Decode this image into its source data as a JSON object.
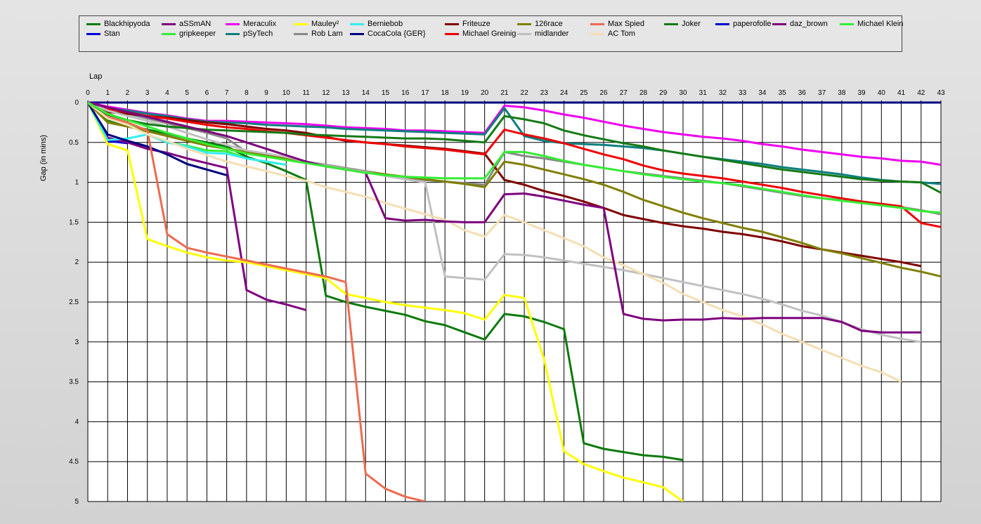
{
  "chart_data": {
    "type": "line",
    "xlabel": "Lap",
    "ylabel": "Gap (in mins)",
    "xlim": [
      0,
      43
    ],
    "ylim": [
      0,
      5
    ],
    "y_inverted": true,
    "grid": true,
    "legend_position": "top",
    "x_ticks": [
      0,
      1,
      2,
      3,
      4,
      5,
      6,
      7,
      8,
      9,
      10,
      11,
      12,
      13,
      14,
      15,
      16,
      17,
      18,
      19,
      20,
      21,
      22,
      23,
      24,
      25,
      26,
      27,
      28,
      29,
      30,
      31,
      32,
      33,
      34,
      35,
      36,
      37,
      38,
      39,
      40,
      41,
      42,
      43
    ],
    "y_ticks": [
      "0",
      "0.5",
      "1",
      "1.5",
      "2",
      "2.5",
      "3",
      "3.5",
      "4",
      "4.5",
      "5"
    ],
    "series": [
      {
        "name": "Blackhipyoda",
        "color": "#0b7a0b",
        "values": [
          0,
          0.22,
          0.28,
          0.34,
          0.39,
          0.45,
          0.5,
          0.55,
          0.68,
          0.76,
          0.86,
          0.97,
          2.42,
          2.5,
          2.56,
          2.61,
          2.66,
          2.74,
          2.79,
          2.88,
          2.97,
          2.65,
          2.68,
          2.75,
          2.84,
          4.27,
          4.34,
          4.38,
          4.42,
          4.44,
          4.48
        ]
      },
      {
        "name": "Stan",
        "color": "#0000dd",
        "values": [
          0,
          0.48,
          0.51
        ]
      },
      {
        "name": "aSSmAN",
        "color": "#800080",
        "values": [
          0,
          0.44,
          0.5,
          0.58,
          0.63,
          0.7,
          0.76,
          0.82,
          2.35,
          2.47,
          2.53,
          2.6
        ]
      },
      {
        "name": "gripkeeper",
        "color": "#33ee33",
        "values": [
          0,
          0.2,
          0.26,
          0.4,
          0.5,
          0.54,
          0.6,
          0.61,
          0.7,
          0.74,
          0.78
        ]
      },
      {
        "name": "Meraculix",
        "color": "#ee00ee",
        "values": [
          0,
          0.05,
          0.09,
          0.13,
          0.16,
          0.2,
          0.23,
          0.23,
          0.24,
          0.25,
          0.26,
          0.27,
          0.29,
          0.31,
          0.32,
          0.33,
          0.35,
          0.35,
          0.36,
          0.37,
          0.38,
          0.04,
          0.06,
          0.1,
          0.15,
          0.19,
          0.24,
          0.29,
          0.33,
          0.37,
          0.4,
          0.43,
          0.45,
          0.48,
          0.52,
          0.55,
          0.59,
          0.62,
          0.65,
          0.68,
          0.7,
          0.73,
          0.74,
          0.78
        ]
      },
      {
        "name": "pSyTech",
        "color": "#0e7e7e",
        "values": [
          0,
          0.07,
          0.1,
          0.14,
          0.17,
          0.21,
          0.24,
          0.25,
          0.26,
          0.28,
          0.29,
          0.3,
          0.31,
          0.33,
          0.34,
          0.35,
          0.36,
          0.37,
          0.38,
          0.39,
          0.4,
          0.07,
          0.42,
          0.48,
          0.51,
          0.52,
          0.53,
          0.55,
          0.57,
          0.6,
          0.64,
          0.68,
          0.71,
          0.74,
          0.77,
          0.81,
          0.84,
          0.87,
          0.9,
          0.94,
          0.97,
          0.99,
          1.0,
          1.02
        ]
      },
      {
        "name": "Mauley²",
        "color": "#ffff00",
        "values": [
          0,
          0.52,
          0.6,
          1.71,
          1.8,
          1.88,
          1.94,
          1.98,
          2.0,
          2.05,
          2.1,
          2.15,
          2.2,
          2.4,
          2.45,
          2.5,
          2.54,
          2.57,
          2.6,
          2.64,
          2.72,
          2.41,
          2.45,
          3.22,
          4.37,
          4.53,
          4.62,
          4.7,
          4.76,
          4.82,
          5.0
        ]
      },
      {
        "name": "Rob Lam",
        "color": "#888888",
        "values": [
          0,
          0.1,
          0.14,
          0.2,
          0.26,
          0.32,
          0.38,
          0.45,
          0.62,
          0.66,
          0.7,
          0.74,
          0.78,
          0.82,
          0.86,
          0.9,
          0.94,
          0.97,
          0.99,
          1.01,
          1.03,
          0.62,
          0.67,
          0.7,
          0.74,
          0.78,
          0.82,
          0.86,
          0.89,
          0.92,
          0.95,
          0.98,
          1.01,
          1.05,
          1.09,
          1.13,
          1.17,
          1.2,
          1.22,
          1.25,
          1.28,
          1.31,
          1.35,
          1.4
        ]
      },
      {
        "name": "Berniebob",
        "color": "#33eeee",
        "values": [
          0,
          0.47,
          0.45,
          0.4,
          0.5,
          0.55,
          0.63,
          0.64,
          0.7,
          0.74,
          0.78
        ]
      },
      {
        "name": "CocaCola {GER}",
        "color": "#000080",
        "values": [
          0,
          0.4,
          0.48,
          0.55,
          0.65,
          0.77,
          0.84,
          0.91
        ]
      },
      {
        "name": "Friteuze",
        "color": "#800000",
        "values": [
          0,
          0.12,
          0.14,
          0.17,
          0.19,
          0.22,
          0.25,
          0.27,
          0.3,
          0.33,
          0.35,
          0.38,
          0.43,
          0.48,
          0.5,
          0.52,
          0.54,
          0.56,
          0.58,
          0.61,
          0.64,
          0.97,
          1.03,
          1.11,
          1.17,
          1.24,
          1.32,
          1.41,
          1.46,
          1.51,
          1.55,
          1.58,
          1.62,
          1.65,
          1.69,
          1.74,
          1.8,
          1.84,
          1.88,
          1.92,
          1.96,
          2.0,
          2.05
        ]
      },
      {
        "name": "Michael Greinig",
        "color": "#ee0000",
        "values": [
          0,
          0.08,
          0.12,
          0.17,
          0.2,
          0.24,
          0.28,
          0.31,
          0.33,
          0.36,
          0.38,
          0.41,
          0.44,
          0.47,
          0.5,
          0.52,
          0.55,
          0.57,
          0.59,
          0.62,
          0.65,
          0.34,
          0.4,
          0.45,
          0.51,
          0.58,
          0.65,
          0.71,
          0.79,
          0.85,
          0.89,
          0.92,
          0.95,
          0.99,
          1.03,
          1.07,
          1.12,
          1.16,
          1.2,
          1.24,
          1.27,
          1.3,
          1.51,
          1.56
        ]
      },
      {
        "name": "126race",
        "color": "#807f00",
        "values": [
          0,
          0.25,
          0.3,
          0.36,
          0.42,
          0.48,
          0.54,
          0.58,
          0.62,
          0.66,
          0.7,
          0.75,
          0.79,
          0.83,
          0.87,
          0.9,
          0.93,
          0.96,
          0.99,
          1.02,
          1.06,
          0.74,
          0.78,
          0.84,
          0.9,
          0.96,
          1.03,
          1.12,
          1.22,
          1.3,
          1.38,
          1.45,
          1.51,
          1.57,
          1.62,
          1.69,
          1.76,
          1.84,
          1.89,
          1.95,
          2.01,
          2.07,
          2.12,
          2.18
        ]
      },
      {
        "name": "midlander",
        "color": "#c0c0c0",
        "values": [
          0,
          0.1,
          0.17,
          0.23,
          0.3,
          0.38,
          0.46,
          0.53,
          0.6,
          0.64,
          0.68,
          0.74,
          0.79,
          0.83,
          0.87,
          0.92,
          0.96,
          1.0,
          2.18,
          2.2,
          2.22,
          1.9,
          1.91,
          1.94,
          1.98,
          2.02,
          2.06,
          2.1,
          2.15,
          2.2,
          2.25,
          2.3,
          2.35,
          2.4,
          2.46,
          2.53,
          2.61,
          2.67,
          2.75,
          2.84,
          2.91,
          2.96,
          3.0
        ]
      },
      {
        "name": "Max Spied",
        "color": "#ee6a50",
        "values": [
          0,
          0.18,
          0.25,
          0.35,
          1.65,
          1.82,
          1.88,
          1.93,
          1.98,
          2.03,
          2.08,
          2.13,
          2.18,
          2.25,
          4.65,
          4.84,
          4.94,
          5.0
        ]
      },
      {
        "name": "AC Tom",
        "color": "#f5deb3",
        "values": [
          0,
          0.2,
          0.28,
          0.4,
          0.48,
          0.58,
          0.66,
          0.74,
          0.8,
          0.86,
          0.92,
          0.98,
          1.06,
          1.12,
          1.18,
          1.26,
          1.33,
          1.4,
          1.47,
          1.6,
          1.68,
          1.41,
          1.5,
          1.6,
          1.7,
          1.8,
          1.94,
          2.04,
          2.15,
          2.26,
          2.4,
          2.5,
          2.6,
          2.68,
          2.78,
          2.9,
          3.0,
          3.1,
          3.2,
          3.3,
          3.38,
          3.5
        ]
      },
      {
        "name": "Joker",
        "color": "#157a15",
        "values": [
          0,
          0.15,
          0.22,
          0.27,
          0.3,
          0.32,
          0.34,
          0.35,
          0.36,
          0.37,
          0.38,
          0.4,
          0.41,
          0.42,
          0.43,
          0.44,
          0.45,
          0.45,
          0.46,
          0.48,
          0.5,
          0.17,
          0.21,
          0.26,
          0.35,
          0.41,
          0.46,
          0.51,
          0.55,
          0.6,
          0.64,
          0.68,
          0.72,
          0.76,
          0.8,
          0.84,
          0.87,
          0.9,
          0.93,
          0.96,
          0.98,
          0.99,
          1.0,
          1.13
        ]
      },
      {
        "name": "paperofolle",
        "color": "#0000cc",
        "values": []
      },
      {
        "name": "daz_brown",
        "color": "#7d007d",
        "values": [
          0,
          0.06,
          0.12,
          0.18,
          0.24,
          0.3,
          0.36,
          0.42,
          0.5,
          0.58,
          0.66,
          0.74,
          0.8,
          0.84,
          0.88,
          1.45,
          1.48,
          1.47,
          1.49,
          1.5,
          1.5,
          1.15,
          1.14,
          1.18,
          1.23,
          1.28,
          1.32,
          2.65,
          2.71,
          2.73,
          2.72,
          2.72,
          2.7,
          2.71,
          2.7,
          2.7,
          2.7,
          2.7,
          2.75,
          2.86,
          2.88,
          2.88,
          2.88
        ]
      },
      {
        "name": "Michael Klein",
        "color": "#33ee33",
        "values": [
          0,
          0.14,
          0.22,
          0.3,
          0.38,
          0.45,
          0.52,
          0.58,
          0.64,
          0.68,
          0.72,
          0.76,
          0.8,
          0.84,
          0.88,
          0.91,
          0.93,
          0.94,
          0.95,
          0.95,
          0.95,
          0.62,
          0.62,
          0.67,
          0.73,
          0.78,
          0.82,
          0.86,
          0.9,
          0.93,
          0.96,
          0.99,
          1.01,
          1.04,
          1.08,
          1.12,
          1.16,
          1.2,
          1.23,
          1.26,
          1.29,
          1.32,
          1.36,
          1.38
        ]
      }
    ]
  },
  "legend_layout": [
    [
      "Blackhipyoda",
      "aSSmAN",
      "Meraculix",
      "Mauley²",
      "Berniebob",
      "Friteuze",
      "126race",
      "Max Spied",
      "Joker",
      "paperofolle",
      "daz_brown",
      "Michael Klein"
    ],
    [
      "Stan",
      "gripkeeper",
      "pSyTech",
      "Rob Lam",
      "CocaCola {GER}",
      "Michael Greinig",
      "midlander",
      "AC Tom"
    ]
  ],
  "baseline_color": "#000080"
}
